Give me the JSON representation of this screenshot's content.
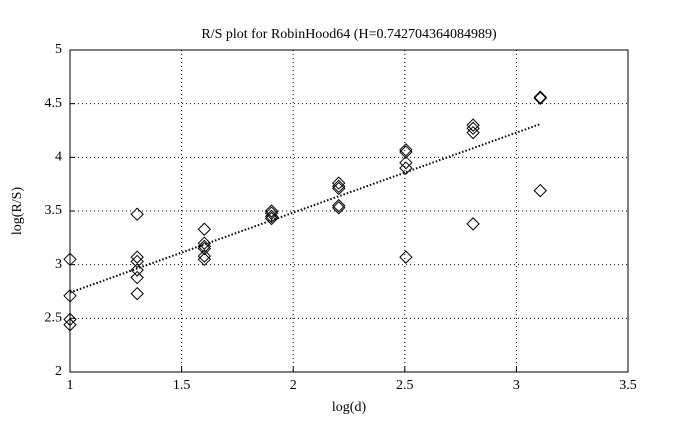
{
  "chart_data": {
    "type": "scatter",
    "title": "R/S plot for RobinHood64 (H=0.742704364084989)",
    "x_label": "log(d)",
    "y_label": "log(R/S)",
    "series": [
      {
        "color": "#000000",
        "x": [
          1,
          1,
          1,
          1,
          1.301,
          1.301,
          1.301,
          1.301,
          1.301,
          1.301,
          1.602,
          1.602,
          1.602,
          1.602,
          1.602,
          1.602,
          1.903,
          1.903,
          1.903,
          1.903,
          2.204,
          2.204,
          2.204,
          2.204,
          2.204,
          2.505,
          2.505,
          2.505,
          2.505,
          2.505,
          2.806,
          2.806,
          2.806,
          2.806,
          3.107,
          3.107,
          3.107
        ],
        "values": [
          3.05,
          2.71,
          2.49,
          2.44,
          3.47,
          3.07,
          3.03,
          2.95,
          2.88,
          2.73,
          3.33,
          3.2,
          3.17,
          3.15,
          3.08,
          3.05,
          3.5,
          3.48,
          3.45,
          3.43,
          3.76,
          3.73,
          3.71,
          3.55,
          3.53,
          4.07,
          4.05,
          3.95,
          3.9,
          3.07,
          4.3,
          4.27,
          4.23,
          3.38,
          4.56,
          4.55,
          3.69
        ]
      }
    ],
    "fit": {
      "x": [
        1,
        3.107
      ],
      "y": [
        2.74,
        4.31
      ]
    },
    "xlim": [
      1,
      3.5
    ],
    "xticks": [
      1,
      1.5,
      2,
      2.5,
      3,
      3.5
    ],
    "ylim": [
      2,
      5
    ],
    "yticks": [
      2,
      2.5,
      3,
      3.5,
      4,
      4.5,
      5
    ],
    "grid": true
  }
}
